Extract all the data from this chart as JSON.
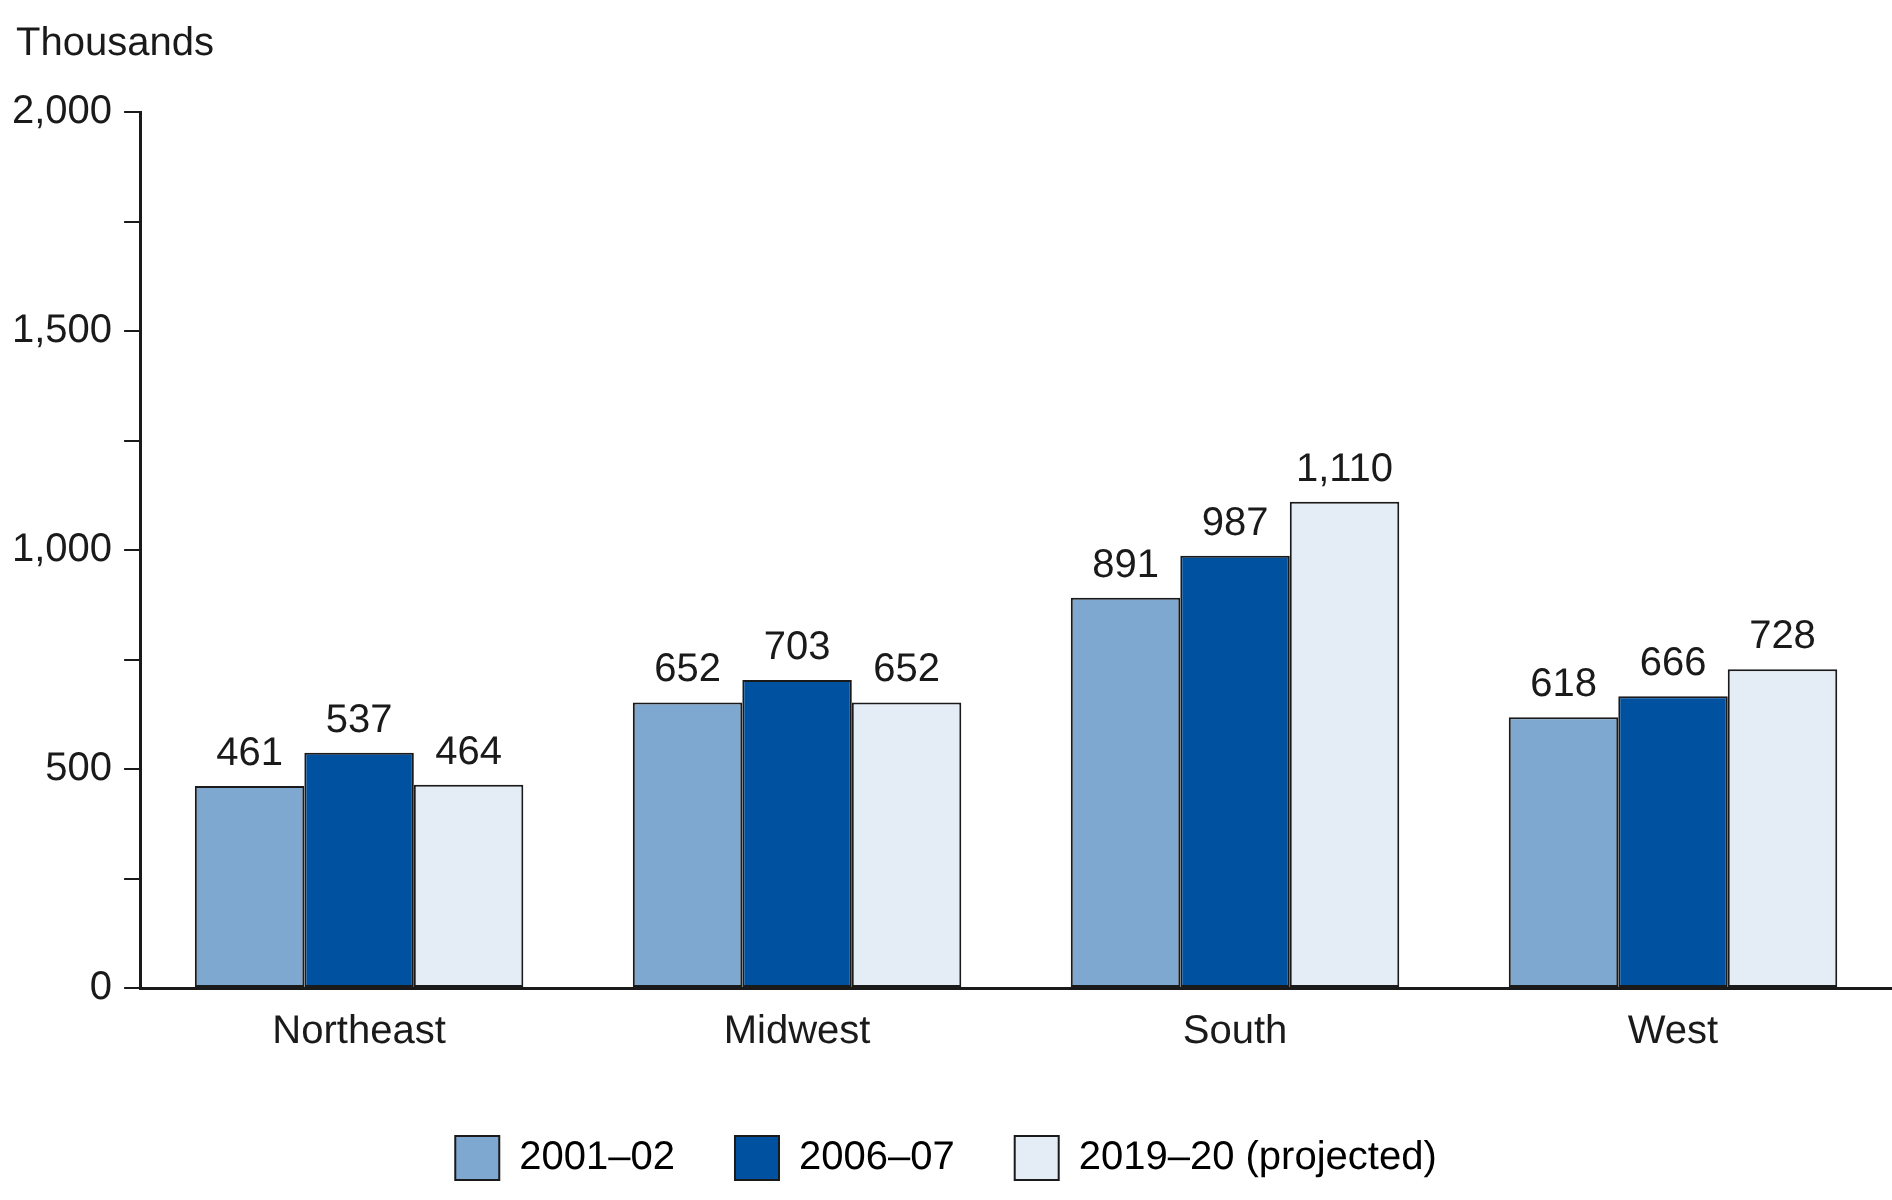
{
  "chart_data": {
    "type": "bar",
    "ylabel": "Thousands",
    "categories": [
      "Northeast",
      "Midwest",
      "South",
      "West"
    ],
    "series": [
      {
        "name": "2001–02",
        "color": "#7fa8d1",
        "values": [
          461,
          652,
          891,
          618
        ]
      },
      {
        "name": "2006–07",
        "color": "#0052a0",
        "values": [
          537,
          703,
          987,
          666
        ]
      },
      {
        "name": "2019–20 (projected)",
        "color": "#e4ecf5",
        "values": [
          464,
          652,
          1110,
          728
        ],
        "value_labels": [
          "464",
          "652",
          "1,110",
          "728"
        ]
      }
    ],
    "ylim": [
      0,
      2000
    ],
    "yticks": [
      0,
      {
        "value": 250,
        "label": null
      },
      500,
      {
        "value": 750,
        "label": null
      },
      {
        "value": 1000,
        "label": "1,000"
      },
      {
        "value": 1250,
        "label": null
      },
      {
        "value": 1500,
        "label": "1,500"
      },
      {
        "value": 1750,
        "label": null
      },
      {
        "value": 2000,
        "label": "2,000"
      }
    ],
    "data_labels": true,
    "grid": false,
    "legend": "bottom"
  }
}
